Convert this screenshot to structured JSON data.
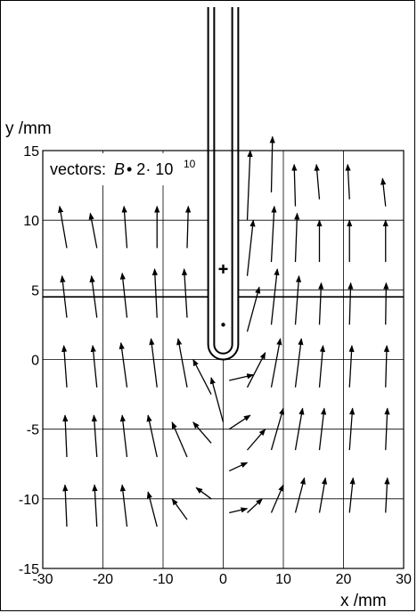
{
  "chart_data": {
    "type": "vector-field",
    "xlabel": "x /mm",
    "ylabel": "y /mm",
    "xlim": [
      -30,
      30
    ],
    "ylim": [
      -15,
      15
    ],
    "xticks": [
      -30,
      -20,
      -10,
      0,
      10,
      20,
      30
    ],
    "yticks": [
      -15,
      -10,
      -5,
      0,
      5,
      10,
      15
    ],
    "grid_x": [
      -20,
      -10,
      0,
      10,
      20
    ],
    "grid_y": [
      -10,
      -5,
      0,
      5,
      10
    ],
    "interface_y": 4.5,
    "legend": {
      "prefix": "vectors:",
      "symbol": "B",
      "scale_text": "• 2· 10",
      "exponent": "10"
    },
    "probe": {
      "tip_y": 0,
      "outer_half_width": 2.5,
      "inner_half_width": 1.5,
      "plus_marker": {
        "x": 0,
        "y": 6.5
      },
      "dot_marker": {
        "x": 0,
        "y": 2.5
      }
    },
    "vectors": [
      {
        "x": -26,
        "y": -12,
        "dx": -0.3,
        "dy": 3
      },
      {
        "x": -26,
        "y": -7,
        "dx": -0.3,
        "dy": 3
      },
      {
        "x": -26,
        "y": -2,
        "dx": -0.5,
        "dy": 3
      },
      {
        "x": -26,
        "y": 3,
        "dx": -0.8,
        "dy": 3
      },
      {
        "x": -26,
        "y": 8,
        "dx": -1.2,
        "dy": 3
      },
      {
        "x": -21,
        "y": -12,
        "dx": -0.4,
        "dy": 3
      },
      {
        "x": -21,
        "y": -7,
        "dx": -0.5,
        "dy": 3
      },
      {
        "x": -21,
        "y": -2,
        "dx": -0.7,
        "dy": 3
      },
      {
        "x": -21,
        "y": 3,
        "dx": -0.9,
        "dy": 3
      },
      {
        "x": -21,
        "y": 8,
        "dx": -1.1,
        "dy": 2.5
      },
      {
        "x": -16,
        "y": -12,
        "dx": -0.8,
        "dy": 3
      },
      {
        "x": -16,
        "y": -7,
        "dx": -0.8,
        "dy": 3
      },
      {
        "x": -16,
        "y": -2,
        "dx": -1,
        "dy": 3.2
      },
      {
        "x": -16,
        "y": 3,
        "dx": -0.8,
        "dy": 3.2
      },
      {
        "x": -16,
        "y": 8,
        "dx": -0.5,
        "dy": 3
      },
      {
        "x": -11,
        "y": -12,
        "dx": -1.5,
        "dy": 2.5
      },
      {
        "x": -11,
        "y": -7,
        "dx": -1.5,
        "dy": 3
      },
      {
        "x": -11,
        "y": -2,
        "dx": -1,
        "dy": 3.5
      },
      {
        "x": -11,
        "y": 3,
        "dx": -0.4,
        "dy": 3.5
      },
      {
        "x": -11,
        "y": 8,
        "dx": 0,
        "dy": 3
      },
      {
        "x": -6,
        "y": -11.5,
        "dx": -2.5,
        "dy": 1.5
      },
      {
        "x": -6,
        "y": -7,
        "dx": -2.5,
        "dy": 2.5
      },
      {
        "x": -6,
        "y": -2,
        "dx": -1.5,
        "dy": 3.5
      },
      {
        "x": -6,
        "y": 3,
        "dx": -0.5,
        "dy": 3.5
      },
      {
        "x": -6,
        "y": 8,
        "dx": 0.2,
        "dy": 3
      },
      {
        "x": -2,
        "y": -10,
        "dx": -2.5,
        "dy": 0.8
      },
      {
        "x": -2,
        "y": -6,
        "dx": -3,
        "dy": 1.5
      },
      {
        "x": -2,
        "y": -2.5,
        "dx": -3,
        "dy": 2.5
      },
      {
        "x": 0,
        "y": -4.5,
        "dx": -2,
        "dy": 3.2
      },
      {
        "x": 1,
        "y": -11,
        "dx": 3,
        "dy": 0.3
      },
      {
        "x": 1,
        "y": -8,
        "dx": 3,
        "dy": 0.6
      },
      {
        "x": 1,
        "y": -5,
        "dx": 3.5,
        "dy": 1
      },
      {
        "x": 1,
        "y": -1.5,
        "dx": 4,
        "dy": 0.4
      },
      {
        "x": 4,
        "y": -11,
        "dx": 2.5,
        "dy": 1
      },
      {
        "x": 4,
        "y": -6.5,
        "dx": 3,
        "dy": 1.5
      },
      {
        "x": 4,
        "y": -2,
        "dx": 3,
        "dy": 2.5
      },
      {
        "x": 4,
        "y": 2,
        "dx": 2,
        "dy": 3.2
      },
      {
        "x": 4,
        "y": 6,
        "dx": 1,
        "dy": 4
      },
      {
        "x": 4,
        "y": 10,
        "dx": 0.5,
        "dy": 5
      },
      {
        "x": 8,
        "y": -11,
        "dx": 2,
        "dy": 2
      },
      {
        "x": 8,
        "y": -6.5,
        "dx": 2,
        "dy": 3
      },
      {
        "x": 8,
        "y": -2,
        "dx": 1.5,
        "dy": 3.5
      },
      {
        "x": 8,
        "y": 2.5,
        "dx": 1,
        "dy": 4
      },
      {
        "x": 8,
        "y": 7,
        "dx": 0.5,
        "dy": 4
      },
      {
        "x": 8,
        "y": 12,
        "dx": 0.2,
        "dy": 4
      },
      {
        "x": 12,
        "y": -11,
        "dx": 1.5,
        "dy": 2.5
      },
      {
        "x": 12,
        "y": -6.5,
        "dx": 1.2,
        "dy": 3
      },
      {
        "x": 12,
        "y": -2,
        "dx": 1,
        "dy": 3.5
      },
      {
        "x": 12,
        "y": 2.5,
        "dx": 0.6,
        "dy": 3.5
      },
      {
        "x": 12,
        "y": 7,
        "dx": 0.3,
        "dy": 3.5
      },
      {
        "x": 12,
        "y": 11,
        "dx": -0.2,
        "dy": 3
      },
      {
        "x": 16,
        "y": -11,
        "dx": 1,
        "dy": 2.5
      },
      {
        "x": 16,
        "y": -6.5,
        "dx": 0.8,
        "dy": 3
      },
      {
        "x": 16,
        "y": -2,
        "dx": 0.6,
        "dy": 3
      },
      {
        "x": 16,
        "y": 2.5,
        "dx": 0.3,
        "dy": 3
      },
      {
        "x": 16,
        "y": 7,
        "dx": 0,
        "dy": 3
      },
      {
        "x": 16,
        "y": 11.5,
        "dx": -0.5,
        "dy": 2.5
      },
      {
        "x": 21,
        "y": -11,
        "dx": 0.6,
        "dy": 2.5
      },
      {
        "x": 21,
        "y": -6.5,
        "dx": 0.5,
        "dy": 3
      },
      {
        "x": 21,
        "y": -2,
        "dx": 0.4,
        "dy": 3
      },
      {
        "x": 21,
        "y": 2.5,
        "dx": 0.2,
        "dy": 3
      },
      {
        "x": 21,
        "y": 7,
        "dx": 0,
        "dy": 3
      },
      {
        "x": 21,
        "y": 11.5,
        "dx": -0.3,
        "dy": 2.5
      },
      {
        "x": 27,
        "y": -11,
        "dx": 0.3,
        "dy": 2.5
      },
      {
        "x": 27,
        "y": -6.5,
        "dx": 0.3,
        "dy": 3
      },
      {
        "x": 27,
        "y": -2,
        "dx": 0.2,
        "dy": 3
      },
      {
        "x": 27,
        "y": 2.5,
        "dx": 0.1,
        "dy": 3
      },
      {
        "x": 27,
        "y": 7,
        "dx": 0,
        "dy": 3
      },
      {
        "x": 27,
        "y": 11,
        "dx": -0.5,
        "dy": 2
      }
    ]
  }
}
